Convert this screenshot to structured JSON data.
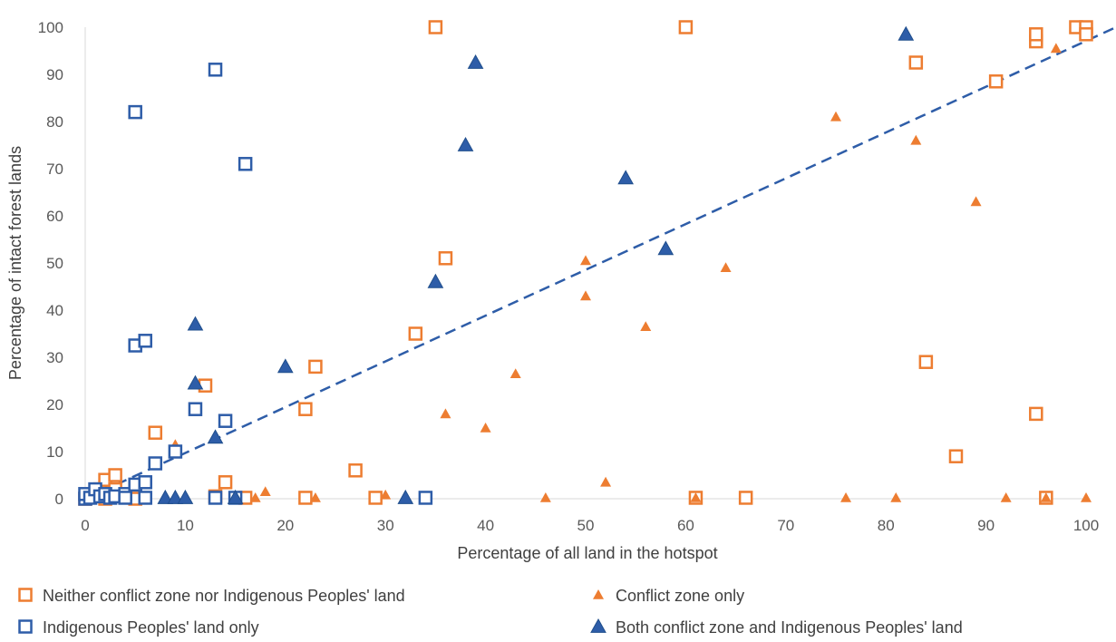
{
  "chart_data": {
    "type": "scatter",
    "title": "",
    "xlabel": "Percentage of all land in the hotspot",
    "ylabel": "Percentage of intact forest lands",
    "xlim": [
      0,
      100
    ],
    "ylim": [
      0,
      100
    ],
    "xticks": [
      "0",
      "10",
      "20",
      "30",
      "40",
      "50",
      "60",
      "70",
      "80",
      "90",
      "100"
    ],
    "yticks": [
      "0",
      "10",
      "20",
      "30",
      "40",
      "50",
      "60",
      "70",
      "80",
      "90",
      "100"
    ],
    "grid": false,
    "legend_position": "bottom",
    "reference_line": {
      "x": [
        0,
        103
      ],
      "y": [
        0,
        100
      ],
      "style": "dashed",
      "color": "#2E5DA8"
    },
    "series": [
      {
        "name": "Neither conflict zone nor Indigenous Peoples' land",
        "marker": "hollow-square",
        "color": "#ED7D31",
        "points": [
          [
            0,
            0
          ],
          [
            0.5,
            0.5
          ],
          [
            1,
            1
          ],
          [
            1.5,
            2
          ],
          [
            2,
            4
          ],
          [
            3,
            5
          ],
          [
            2,
            0
          ],
          [
            3,
            2
          ],
          [
            4,
            0.5
          ],
          [
            5,
            0
          ],
          [
            7,
            14
          ],
          [
            12,
            24
          ],
          [
            13,
            0.5
          ],
          [
            14,
            3.5
          ],
          [
            16,
            0.2
          ],
          [
            22,
            19
          ],
          [
            22,
            0.2
          ],
          [
            23,
            28
          ],
          [
            27,
            6
          ],
          [
            29,
            0.2
          ],
          [
            33,
            35
          ],
          [
            35,
            100
          ],
          [
            36,
            51
          ],
          [
            60,
            100
          ],
          [
            61,
            0.2
          ],
          [
            66,
            0.2
          ],
          [
            83,
            92.5
          ],
          [
            84,
            29
          ],
          [
            87,
            9
          ],
          [
            91,
            88.5
          ],
          [
            95,
            18
          ],
          [
            95,
            97
          ],
          [
            95,
            98.5
          ],
          [
            96,
            0.2
          ],
          [
            99,
            100
          ],
          [
            100,
            100
          ],
          [
            100,
            98.5
          ]
        ]
      },
      {
        "name": "Conflict zone only",
        "marker": "small-triangle",
        "color": "#ED7D31",
        "points": [
          [
            9,
            11.5
          ],
          [
            17,
            0.2
          ],
          [
            18,
            1.5
          ],
          [
            23,
            0.2
          ],
          [
            30,
            0.8
          ],
          [
            36,
            18
          ],
          [
            40,
            15
          ],
          [
            43,
            26.5
          ],
          [
            46,
            0.2
          ],
          [
            50,
            50.5
          ],
          [
            50,
            43
          ],
          [
            52,
            3.5
          ],
          [
            56,
            36.5
          ],
          [
            61,
            0.2
          ],
          [
            64,
            49
          ],
          [
            75,
            81
          ],
          [
            76,
            0.2
          ],
          [
            81,
            0.2
          ],
          [
            83,
            76
          ],
          [
            89,
            63
          ],
          [
            92,
            0.2
          ],
          [
            96,
            0.2
          ],
          [
            97,
            95.5
          ],
          [
            100,
            0.2
          ]
        ]
      },
      {
        "name": "Indigenous Peoples' land only",
        "marker": "hollow-square",
        "color": "#2E5DA8",
        "points": [
          [
            0,
            0
          ],
          [
            0,
            1
          ],
          [
            0.5,
            0.2
          ],
          [
            1,
            2
          ],
          [
            1.5,
            0.5
          ],
          [
            2,
            1
          ],
          [
            2.5,
            0.2
          ],
          [
            3,
            0.5
          ],
          [
            4,
            1
          ],
          [
            4,
            0.2
          ],
          [
            5,
            3
          ],
          [
            5,
            82
          ],
          [
            5,
            32.5
          ],
          [
            6,
            33.5
          ],
          [
            6,
            0.2
          ],
          [
            6,
            3.5
          ],
          [
            7,
            7.5
          ],
          [
            9,
            10
          ],
          [
            11,
            19
          ],
          [
            13,
            91
          ],
          [
            13,
            0.2
          ],
          [
            14,
            16.5
          ],
          [
            15,
            0.2
          ],
          [
            16,
            71
          ],
          [
            34,
            0.2
          ]
        ]
      },
      {
        "name": "Both conflict zone and Indigenous Peoples' land",
        "marker": "filled-triangle",
        "color": "#2E5DA8",
        "points": [
          [
            8,
            0.2
          ],
          [
            9,
            0.2
          ],
          [
            10,
            0.2
          ],
          [
            11,
            37
          ],
          [
            11,
            24.5
          ],
          [
            13,
            13
          ],
          [
            15,
            0.2
          ],
          [
            20,
            28
          ],
          [
            32,
            0.2
          ],
          [
            35,
            46
          ],
          [
            38,
            75
          ],
          [
            39,
            92.5
          ],
          [
            54,
            68
          ],
          [
            58,
            53
          ],
          [
            82,
            98.5
          ]
        ]
      }
    ]
  }
}
